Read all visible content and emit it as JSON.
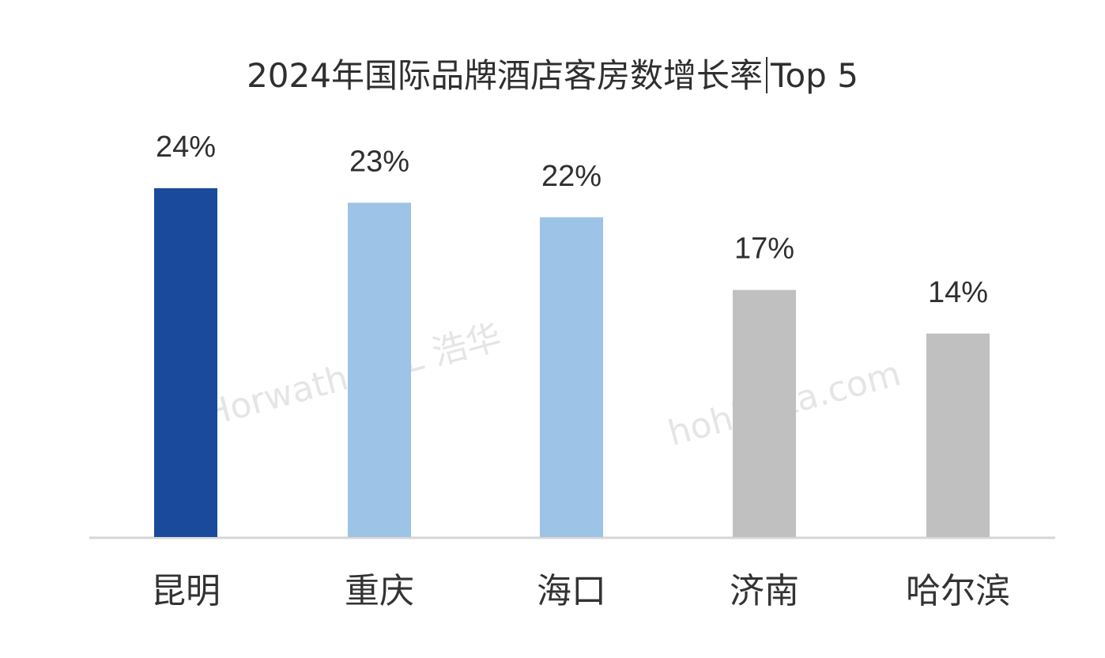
{
  "title_main": "2024年国际品牌酒店客房数增长率",
  "title_tail": "Top 5",
  "watermarks": [
    "Horwath HTL 浩华",
    "hohidata.com"
  ],
  "chart_data": {
    "type": "bar",
    "title": "2024年国际品牌酒店客房数增长率|Top 5",
    "categories": [
      "昆明",
      "重庆",
      "海口",
      "济南",
      "哈尔滨"
    ],
    "values": [
      24,
      23,
      22,
      17,
      14
    ],
    "value_labels": [
      "24%",
      "23%",
      "22%",
      "17%",
      "14%"
    ],
    "colors": [
      "#1a4a9c",
      "#9dc3e6",
      "#9dc3e6",
      "#c0c0c0",
      "#c0c0c0"
    ],
    "ylim": [
      0,
      24
    ],
    "grid": false,
    "legend": "none"
  }
}
